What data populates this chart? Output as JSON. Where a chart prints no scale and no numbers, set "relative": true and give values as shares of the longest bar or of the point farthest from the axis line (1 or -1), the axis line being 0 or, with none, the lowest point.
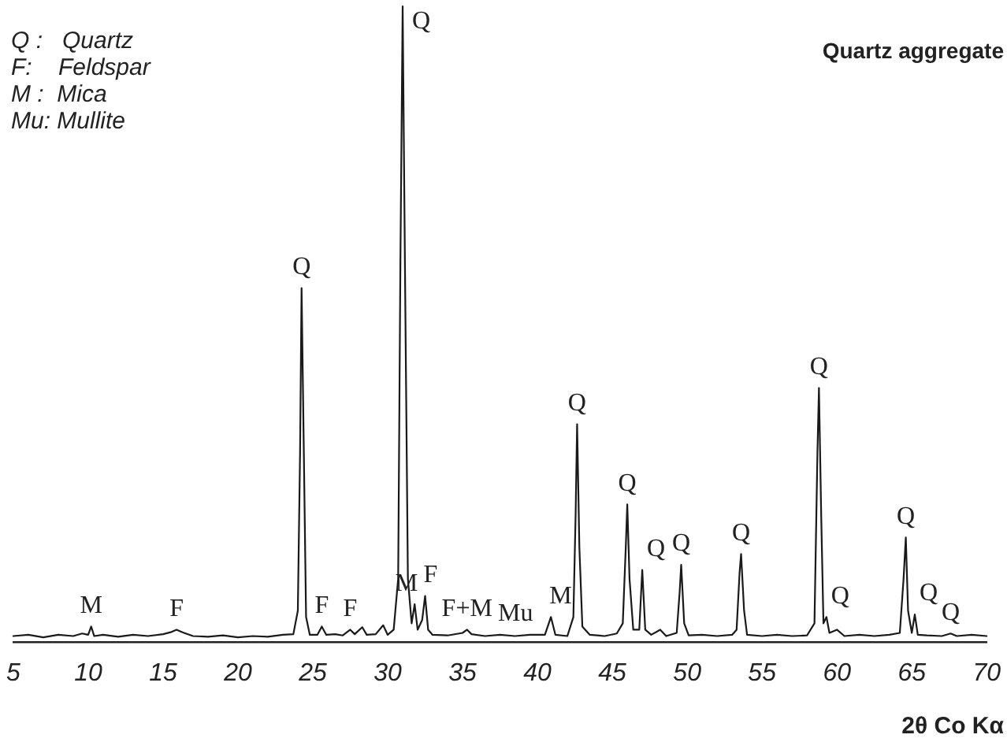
{
  "chart_data": {
    "type": "line",
    "title": "Quartz aggregate",
    "xlabel": "2θ Co Kα",
    "relative": true,
    "color": "#1a1a1a",
    "marker": "none",
    "line_style": "solid",
    "grid": false,
    "legend": false,
    "tick_labels": "x",
    "xlim": [
      5,
      70
    ],
    "xticks": [
      5,
      10,
      15,
      20,
      25,
      30,
      35,
      40,
      45,
      50,
      55,
      60,
      65,
      70
    ],
    "x": [
      5,
      6,
      7,
      8,
      9,
      9.6,
      10.0,
      10.2,
      10.4,
      11,
      12,
      13,
      14,
      15,
      15.5,
      15.9,
      16.3,
      17,
      18,
      19,
      20,
      21,
      22,
      23,
      23.7,
      24.0,
      24.15,
      24.25,
      24.4,
      24.55,
      24.8,
      25.3,
      25.6,
      25.9,
      26.5,
      27.0,
      27.5,
      27.8,
      28.3,
      28.6,
      29.2,
      29.7,
      30.0,
      30.4,
      30.7,
      30.85,
      31.0,
      31.15,
      31.35,
      31.6,
      31.8,
      32.0,
      32.3,
      32.5,
      32.7,
      33.0,
      34,
      35,
      35.3,
      35.6,
      36.5,
      37.5,
      38.5,
      39.5,
      40.5,
      40.9,
      41.2,
      42,
      42.4,
      42.55,
      42.65,
      42.8,
      43.0,
      43.5,
      44.5,
      45.3,
      45.7,
      45.9,
      46.0,
      46.15,
      46.4,
      46.8,
      47.0,
      47.2,
      47.6,
      48.2,
      48.6,
      49.3,
      49.5,
      49.6,
      49.8,
      50.1,
      51,
      52,
      53,
      53.3,
      53.5,
      53.6,
      53.8,
      54.0,
      55,
      56,
      57,
      58,
      58.5,
      58.7,
      58.8,
      58.95,
      59.1,
      59.3,
      59.5,
      60,
      60.5,
      61.5,
      62.5,
      63.5,
      64.2,
      64.45,
      64.6,
      64.75,
      65.0,
      65.2,
      65.4,
      66,
      67,
      67.6,
      68,
      69,
      70
    ],
    "values": [
      0.01,
      0.012,
      0.008,
      0.012,
      0.01,
      0.014,
      0.012,
      0.025,
      0.01,
      0.012,
      0.009,
      0.012,
      0.01,
      0.013,
      0.016,
      0.02,
      0.016,
      0.01,
      0.009,
      0.011,
      0.008,
      0.01,
      0.009,
      0.012,
      0.013,
      0.05,
      0.3,
      0.557,
      0.3,
      0.04,
      0.012,
      0.012,
      0.025,
      0.012,
      0.013,
      0.011,
      0.02,
      0.013,
      0.024,
      0.012,
      0.013,
      0.027,
      0.012,
      0.02,
      0.1,
      0.6,
      1,
      0.6,
      0.1,
      0.03,
      0.06,
      0.02,
      0.035,
      0.073,
      0.02,
      0.012,
      0.011,
      0.015,
      0.02,
      0.013,
      0.01,
      0.012,
      0.01,
      0.012,
      0.012,
      0.04,
      0.012,
      0.01,
      0.04,
      0.2,
      0.343,
      0.15,
      0.025,
      0.012,
      0.01,
      0.014,
      0.03,
      0.15,
      0.217,
      0.1,
      0.02,
      0.02,
      0.114,
      0.02,
      0.012,
      0.02,
      0.01,
      0.015,
      0.08,
      0.122,
      0.03,
      0.011,
      0.012,
      0.01,
      0.012,
      0.02,
      0.11,
      0.139,
      0.05,
      0.012,
      0.01,
      0.012,
      0.01,
      0.011,
      0.03,
      0.3,
      0.4,
      0.2,
      0.03,
      0.04,
      0.015,
      0.02,
      0.01,
      0.012,
      0.01,
      0.012,
      0.015,
      0.1,
      0.165,
      0.05,
      0.015,
      0.044,
      0.012,
      0.011,
      0.01,
      0.014,
      0.01,
      0.012,
      0.01
    ],
    "annotations": [
      "Q :   Quartz",
      "F:    Feldspar",
      "M :  Mica",
      "Mu: Mullite",
      {
        "text": "Q",
        "x": 24.25,
        "y": 0.557
      },
      {
        "text": "Q",
        "x": 31.0,
        "y": 1
      },
      {
        "text": "M",
        "x": 10.2,
        "y": 0.025
      },
      {
        "text": "F",
        "x": 15.9,
        "y": 0.02
      },
      {
        "text": "F",
        "x": 25.6,
        "y": 0.025
      },
      {
        "text": "F",
        "x": 27.5,
        "y": 0.02
      },
      {
        "text": "M",
        "x": 31.8,
        "y": 0.06
      },
      {
        "text": "F",
        "x": 32.5,
        "y": 0.073
      },
      {
        "text": "F+M",
        "x": 35.3,
        "y": 0.02
      },
      {
        "text": "Mu",
        "x": 39.5,
        "y": 0.012
      },
      {
        "text": "M",
        "x": 40.9,
        "y": 0.04
      },
      {
        "text": "Q",
        "x": 42.65,
        "y": 0.343
      },
      {
        "text": "Q",
        "x": 46.0,
        "y": 0.217
      },
      {
        "text": "Q",
        "x": 47.0,
        "y": 0.114
      },
      {
        "text": "Q",
        "x": 49.6,
        "y": 0.122
      },
      {
        "text": "Q",
        "x": 53.6,
        "y": 0.139
      },
      {
        "text": "Q",
        "x": 58.8,
        "y": 0.4
      },
      {
        "text": "Q",
        "x": 59.3,
        "y": 0.04
      },
      {
        "text": "Q",
        "x": 64.6,
        "y": 0.165
      },
      {
        "text": "Q",
        "x": 65.2,
        "y": 0.044
      },
      {
        "text": "Q",
        "x": 67.6,
        "y": 0.014
      }
    ]
  }
}
